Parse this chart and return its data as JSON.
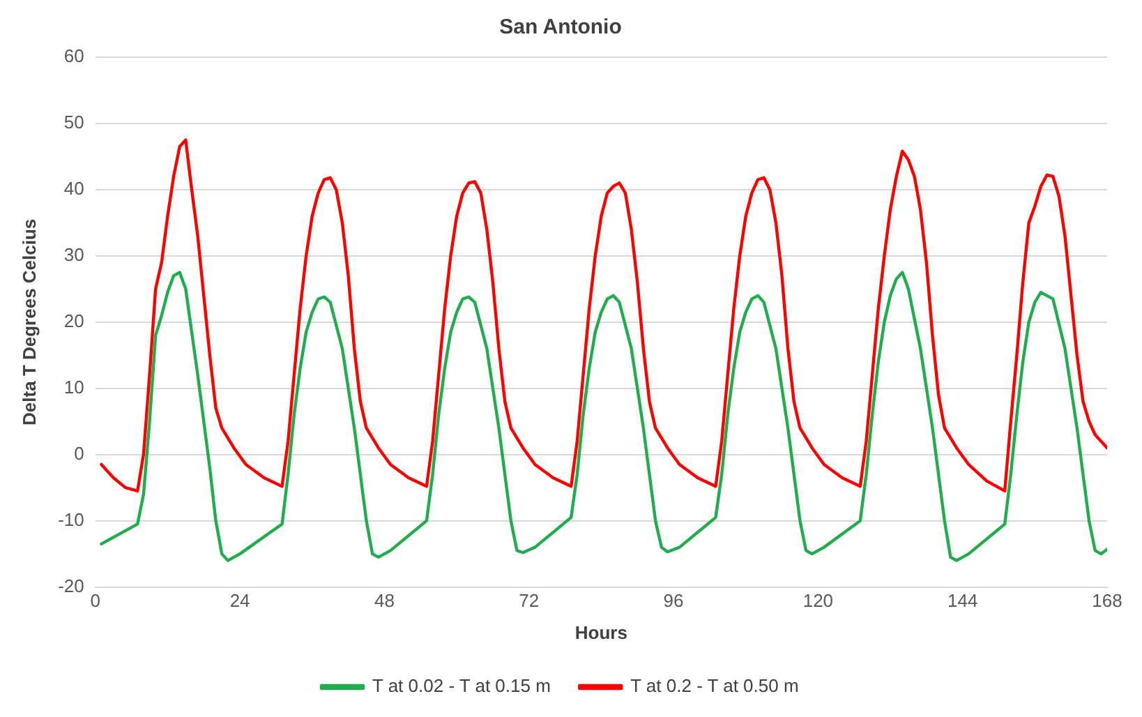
{
  "chart_data": {
    "type": "line",
    "title": "San Antonio",
    "xlabel": "Hours",
    "ylabel": "Delta T Degrees Celcius",
    "xlim": [
      0,
      168
    ],
    "xticks": [
      0,
      24,
      48,
      72,
      96,
      120,
      144,
      168
    ],
    "ylim": [
      -20,
      60
    ],
    "yticks": [
      -20,
      -10,
      0,
      10,
      20,
      30,
      40,
      50,
      60
    ],
    "grid": "y",
    "legend": "bottom",
    "marker": "none",
    "line_style": "solid",
    "series": [
      {
        "name": "T at 0.02 - T at 0.15 m",
        "color": "#1fae4b",
        "x": [
          1,
          4,
          7,
          8,
          9,
          10,
          11,
          12,
          13,
          14,
          15,
          17,
          19,
          20,
          21,
          22,
          24,
          31,
          32,
          33,
          34,
          35,
          36,
          37,
          38,
          39,
          41,
          43,
          45,
          46,
          47,
          49,
          55,
          56,
          57,
          58,
          59,
          60,
          61,
          62,
          63,
          65,
          67,
          69,
          70,
          71,
          73,
          79,
          80,
          81,
          82,
          83,
          84,
          85,
          86,
          87,
          89,
          91,
          93,
          94,
          95,
          97,
          103,
          104,
          105,
          106,
          107,
          108,
          109,
          110,
          111,
          113,
          115,
          117,
          118,
          119,
          121,
          127,
          128,
          129,
          130,
          131,
          132,
          133,
          134,
          135,
          137,
          139,
          141,
          142,
          143,
          145,
          151,
          152,
          153,
          154,
          155,
          156,
          157,
          158,
          159,
          161,
          163,
          165,
          166,
          167,
          168
        ],
        "values": [
          -13.5,
          -12,
          -10.5,
          -6,
          5,
          18,
          21,
          24.5,
          27,
          27.5,
          25,
          12,
          -2,
          -10,
          -15,
          -16,
          -15,
          -10.5,
          -3,
          6,
          13,
          18.5,
          21.5,
          23.5,
          23.8,
          23,
          16,
          4,
          -10,
          -15,
          -15.5,
          -14.5,
          -10,
          -3,
          6,
          13,
          18.5,
          21.5,
          23.5,
          23.8,
          23,
          16,
          4,
          -10,
          -14.5,
          -14.8,
          -14,
          -9.5,
          -3,
          6,
          13,
          18.5,
          21.5,
          23.5,
          24,
          23,
          16,
          4,
          -10,
          -14,
          -14.7,
          -14,
          -9.5,
          -3,
          6,
          13,
          18.5,
          21.5,
          23.5,
          24,
          23,
          16,
          4,
          -10,
          -14.5,
          -15,
          -14,
          -10,
          -3,
          6,
          14,
          20,
          24,
          26.5,
          27.5,
          25,
          16,
          4,
          -10,
          -15.5,
          -16,
          -15,
          -10.5,
          -3,
          6,
          14,
          20,
          23,
          24.5,
          24,
          23.5,
          16,
          4,
          -10,
          -14.5,
          -15,
          -14.3
        ]
      },
      {
        "name": "T at 0.2 - T at 0.50 m",
        "color": "#ff0000",
        "x": [
          1,
          3,
          5,
          7,
          8,
          9,
          10,
          11,
          12,
          13,
          14,
          15,
          16,
          17,
          18,
          19,
          20,
          21,
          23,
          25,
          28,
          31,
          32,
          33,
          34,
          35,
          36,
          37,
          38,
          39,
          40,
          41,
          42,
          43,
          44,
          45,
          47,
          49,
          52,
          55,
          56,
          57,
          58,
          59,
          60,
          61,
          62,
          63,
          64,
          65,
          66,
          67,
          68,
          69,
          71,
          73,
          76,
          79,
          80,
          81,
          82,
          83,
          84,
          85,
          86,
          87,
          88,
          89,
          90,
          91,
          92,
          93,
          95,
          97,
          100,
          103,
          104,
          105,
          106,
          107,
          108,
          109,
          110,
          111,
          112,
          113,
          114,
          115,
          116,
          117,
          119,
          121,
          124,
          127,
          128,
          129,
          130,
          131,
          132,
          133,
          134,
          135,
          136,
          137,
          138,
          139,
          140,
          141,
          143,
          145,
          148,
          151,
          152,
          153,
          154,
          155,
          156,
          157,
          158,
          159,
          160,
          161,
          162,
          163,
          164,
          165,
          166,
          168
        ],
        "values": [
          -1.5,
          -3.5,
          -5,
          -5.5,
          0,
          12,
          25,
          29,
          36,
          42,
          46.5,
          47.5,
          40,
          33,
          24,
          15,
          7,
          4,
          1,
          -1.5,
          -3.5,
          -4.8,
          2,
          12,
          22,
          30,
          36,
          39.5,
          41.5,
          41.8,
          40,
          35,
          27,
          16,
          8,
          4,
          1,
          -1.5,
          -3.5,
          -4.8,
          2,
          12,
          22,
          30,
          36,
          39.5,
          41,
          41.2,
          39.5,
          34,
          26,
          16,
          8,
          4,
          1,
          -1.5,
          -3.5,
          -4.8,
          2,
          12,
          22,
          30,
          36,
          39.5,
          40.5,
          41,
          39.5,
          34,
          26,
          16,
          8,
          4,
          1,
          -1.5,
          -3.5,
          -4.8,
          2,
          12,
          22,
          30,
          36,
          39.5,
          41.5,
          41.8,
          40,
          35,
          27,
          16,
          8,
          4,
          1,
          -1.5,
          -3.5,
          -4.8,
          2,
          12,
          22,
          30,
          37,
          42,
          45.8,
          44.5,
          42,
          37,
          29,
          18,
          9,
          4,
          1,
          -1.5,
          -4,
          -5.5,
          5,
          15,
          26,
          35,
          37.5,
          40.5,
          42.2,
          42,
          39,
          33,
          24,
          15,
          8,
          5,
          3,
          1
        ]
      }
    ]
  }
}
